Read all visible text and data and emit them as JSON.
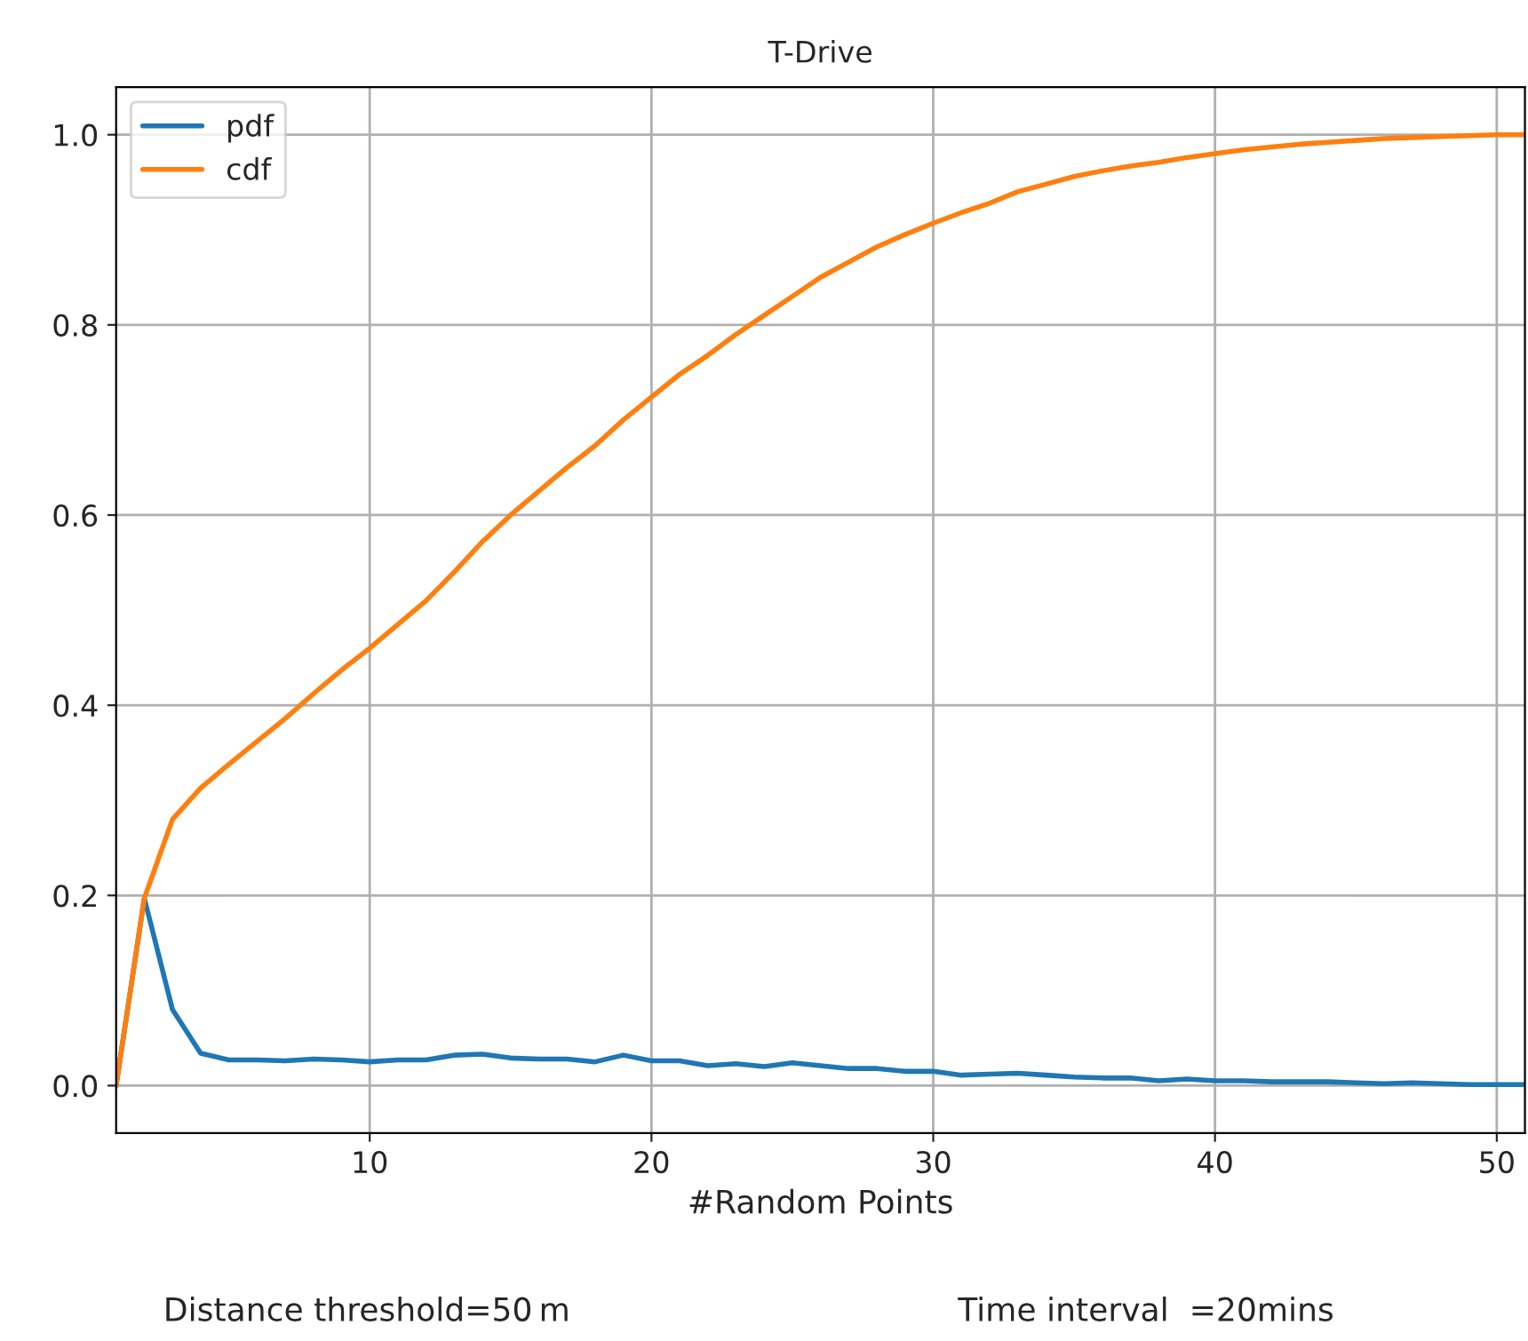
{
  "chart_data": {
    "type": "line",
    "title": "T-Drive",
    "xlabel": "#Random Points",
    "annotations": [
      "Distance threshold=50 m",
      "Time interval  =20mins"
    ],
    "x": [
      1,
      2,
      3,
      4,
      5,
      6,
      7,
      8,
      9,
      10,
      11,
      12,
      13,
      14,
      15,
      16,
      17,
      18,
      19,
      20,
      21,
      22,
      23,
      24,
      25,
      26,
      27,
      28,
      29,
      30,
      31,
      32,
      33,
      34,
      35,
      36,
      37,
      38,
      39,
      40,
      41,
      42,
      43,
      44,
      45,
      46,
      47,
      48,
      49,
      50,
      51
    ],
    "series": [
      {
        "name": "pdf",
        "color": "#1f77b4",
        "values": [
          0.0,
          0.197,
          0.08,
          0.034,
          0.027,
          0.027,
          0.026,
          0.028,
          0.027,
          0.025,
          0.027,
          0.027,
          0.032,
          0.033,
          0.029,
          0.028,
          0.028,
          0.025,
          0.032,
          0.026,
          0.026,
          0.021,
          0.023,
          0.02,
          0.024,
          0.021,
          0.018,
          0.018,
          0.015,
          0.015,
          0.011,
          0.012,
          0.013,
          0.011,
          0.009,
          0.008,
          0.008,
          0.005,
          0.007,
          0.005,
          0.005,
          0.004,
          0.004,
          0.004,
          0.003,
          0.002,
          0.003,
          0.002,
          0.001,
          0.001,
          0.001
        ]
      },
      {
        "name": "cdf",
        "color": "#ff7f0e",
        "values": [
          0.0,
          0.197,
          0.28,
          0.313,
          0.338,
          0.362,
          0.386,
          0.412,
          0.437,
          0.46,
          0.485,
          0.51,
          0.54,
          0.572,
          0.6,
          0.625,
          0.65,
          0.673,
          0.7,
          0.724,
          0.748,
          0.768,
          0.79,
          0.81,
          0.83,
          0.85,
          0.866,
          0.882,
          0.895,
          0.907,
          0.918,
          0.928,
          0.94,
          0.948,
          0.956,
          0.962,
          0.967,
          0.971,
          0.976,
          0.98,
          0.984,
          0.987,
          0.99,
          0.992,
          0.994,
          0.996,
          0.997,
          0.998,
          0.999,
          1.0,
          1.0
        ]
      }
    ],
    "xlim": [
      1,
      51
    ],
    "xticks": [
      10,
      20,
      30,
      40,
      50
    ],
    "ylim": [
      -0.05,
      1.05
    ],
    "yticks": [
      {
        "value": 0,
        "label": "0.0"
      },
      {
        "value": 0.2,
        "label": "0.2"
      },
      {
        "value": 0.4,
        "label": "0.4"
      },
      {
        "value": 0.6,
        "label": "0.6"
      },
      {
        "value": 0.8,
        "label": "0.8"
      },
      {
        "value": 1,
        "label": "1.0"
      }
    ],
    "grid": true,
    "legend": "top left"
  }
}
